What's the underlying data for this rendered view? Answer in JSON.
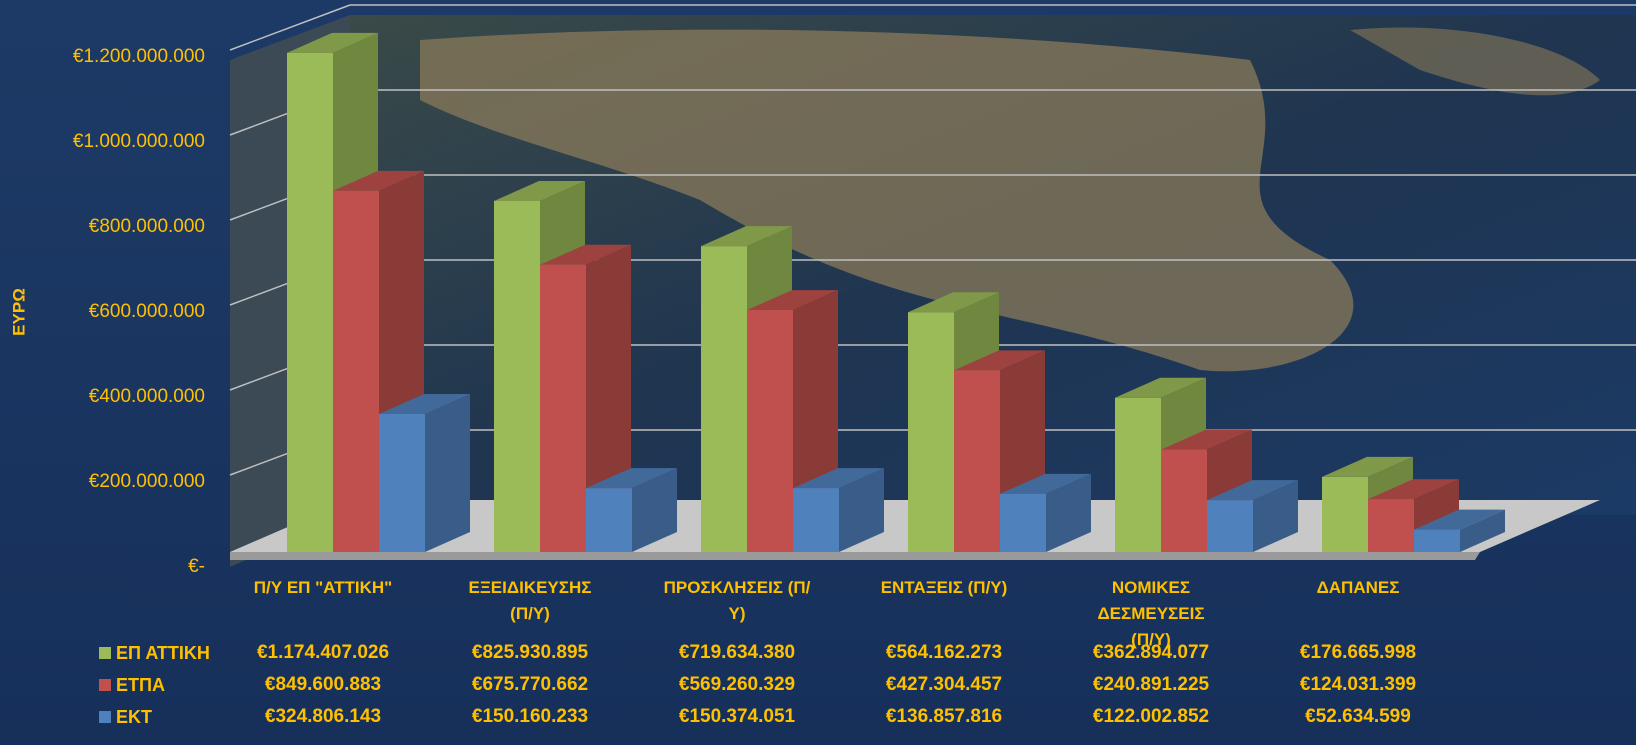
{
  "chart_data": {
    "type": "bar3d",
    "y_label": "ΕΥΡΩ",
    "categories": [
      "Π/Υ ΕΠ \"ΑΤΤΙΚΗ\"",
      "ΕΞΕΙΔΙΚΕΥΣΗΣ (Π/Υ)",
      "ΠΡΟΣΚΛΗΣΕΙΣ (Π/Υ)",
      "ΕΝΤΑΞΕΙΣ (Π/Υ)",
      "ΝΟΜΙΚΕΣ ΔΕΣΜΕΥΣΕΙΣ (Π/Υ)",
      "ΔΑΠΑΝΕΣ"
    ],
    "series": [
      {
        "name": "ΕΠ ΑΤΤΙΚΗ",
        "color": "#9bbb59",
        "values": [
          1174407026,
          825930895,
          719634380,
          564162273,
          362894077,
          176665998
        ],
        "value_labels": [
          "€1.174.407.026",
          "€825.930.895",
          "€719.634.380",
          "€564.162.273",
          "€362.894.077",
          "€176.665.998"
        ]
      },
      {
        "name": "ΕΤΠΑ",
        "color": "#c0504d",
        "values": [
          849600883,
          675770662,
          569260329,
          427304457,
          240891225,
          124031399
        ],
        "value_labels": [
          "€849.600.883",
          "€675.770.662",
          "€569.260.329",
          "€427.304.457",
          "€240.891.225",
          "€124.031.399"
        ]
      },
      {
        "name": "ΕΚΤ",
        "color": "#4f81bd",
        "values": [
          324806143,
          150160233,
          150374051,
          136857816,
          122002852,
          52634599
        ],
        "value_labels": [
          "€324.806.143",
          "€150.160.233",
          "€150.374.051",
          "€136.857.816",
          "€122.002.852",
          "€52.634.599"
        ]
      }
    ],
    "ylim": [
      0,
      1200000000
    ],
    "yticks": [
      {
        "value": 0,
        "label": "€-"
      },
      {
        "value": 200000000,
        "label": "€200.000.000"
      },
      {
        "value": 400000000,
        "label": "€400.000.000"
      },
      {
        "value": 600000000,
        "label": "€600.000.000"
      },
      {
        "value": 800000000,
        "label": "€800.000.000"
      },
      {
        "value": 1000000000,
        "label": "€1.000.000.000"
      },
      {
        "value": 1200000000,
        "label": "€1.200.000.000"
      }
    ],
    "grid": true
  }
}
